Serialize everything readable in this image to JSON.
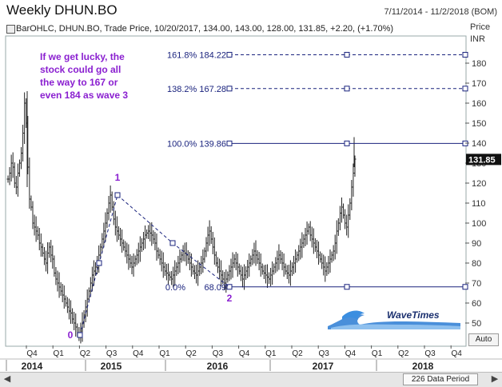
{
  "header": {
    "title": "Weekly DHUN.BO",
    "date_range": "7/11/2014 - 11/2/2018 (BOM)",
    "legend": "BarOHLC, DHUN.BO, Trade Price, 10/20/2017, 134.00, 143.00, 128.00, 131.85, +2.20, (+1.70%)",
    "price_axis_title": "Price",
    "currency": "INR",
    "auto_button": "Auto"
  },
  "annotation": {
    "lines": [
      "If we get lucky, the",
      "stock could go all",
      "the way to 167 or",
      "even 184 as wave 3"
    ],
    "color": "#8a1fd0"
  },
  "scrollbar": {
    "thumb_label": "226 Data Period",
    "left_arrow": "◀",
    "right_arrow": "▶"
  },
  "logo": {
    "text": "WaveTimes"
  },
  "chart_data": {
    "type": "bar",
    "subtype": "ohlc",
    "title": "Weekly DHUN.BO",
    "y_axis_side": "right",
    "ylim": [
      40,
      190
    ],
    "y_ticks": [
      50,
      60,
      70,
      80,
      90,
      100,
      110,
      120,
      130,
      140,
      150,
      160,
      170,
      180
    ],
    "current_price_label": "131.85",
    "x_quarter_labels": [
      "Q4",
      "Q1",
      "Q2",
      "Q3",
      "Q4",
      "Q1",
      "Q2",
      "Q3",
      "Q4",
      "Q1",
      "Q2",
      "Q3",
      "Q4",
      "Q1",
      "Q2",
      "Q3",
      "Q4"
    ],
    "x_year_labels": [
      "2014",
      "2015",
      "2016",
      "2017",
      "2018"
    ],
    "fib_levels": [
      {
        "label": "161.8% 184.22",
        "value": 184.22
      },
      {
        "label": "138.2% 167.28",
        "value": 167.28
      },
      {
        "label": "100.0% 139.86",
        "value": 139.86
      },
      {
        "label": "0.0%",
        "value": 68.09,
        "value_label": "68.09"
      }
    ],
    "wave_labels": [
      {
        "label": "0",
        "price": 44
      },
      {
        "label": "1",
        "price": 114
      },
      {
        "label": "2",
        "price": 68
      }
    ],
    "close_series": [
      122,
      125,
      130,
      128,
      120,
      118,
      125,
      130,
      135,
      145,
      160,
      150,
      128,
      112,
      108,
      100,
      98,
      96,
      94,
      90,
      88,
      85,
      82,
      80,
      85,
      88,
      84,
      82,
      75,
      72,
      70,
      68,
      66,
      64,
      62,
      60,
      58,
      56,
      55,
      52,
      50,
      48,
      45,
      44,
      46,
      50,
      54,
      58,
      62,
      66,
      70,
      74,
      76,
      78,
      80,
      84,
      88,
      92,
      96,
      100,
      105,
      110,
      114,
      108,
      102,
      98,
      96,
      94,
      92,
      90,
      88,
      86,
      84,
      82,
      80,
      78,
      80,
      82,
      84,
      86,
      88,
      90,
      92,
      94,
      95,
      96,
      95,
      94,
      92,
      90,
      86,
      84,
      82,
      80,
      78,
      76,
      75,
      74,
      73,
      72,
      74,
      76,
      78,
      80,
      82,
      84,
      86,
      85,
      84,
      82,
      80,
      78,
      76,
      75,
      74,
      76,
      78,
      80,
      82,
      86,
      90,
      94,
      96,
      92,
      88,
      84,
      80,
      78,
      76,
      74,
      72,
      70,
      72,
      74,
      76,
      78,
      80,
      82,
      80,
      78,
      76,
      74,
      72,
      74,
      76,
      78,
      80,
      82,
      84,
      86,
      84,
      82,
      80,
      78,
      76,
      75,
      74,
      73,
      72,
      74,
      76,
      78,
      80,
      82,
      84,
      82,
      80,
      78,
      76,
      75,
      74,
      76,
      78,
      80,
      82,
      84,
      86,
      88,
      90,
      92,
      94,
      96,
      98,
      94,
      92,
      90,
      88,
      86,
      84,
      82,
      80,
      78,
      76,
      78,
      80,
      82,
      84,
      86,
      90,
      96,
      100,
      105,
      108,
      104,
      100,
      98,
      104,
      110,
      118,
      125,
      132
    ]
  }
}
